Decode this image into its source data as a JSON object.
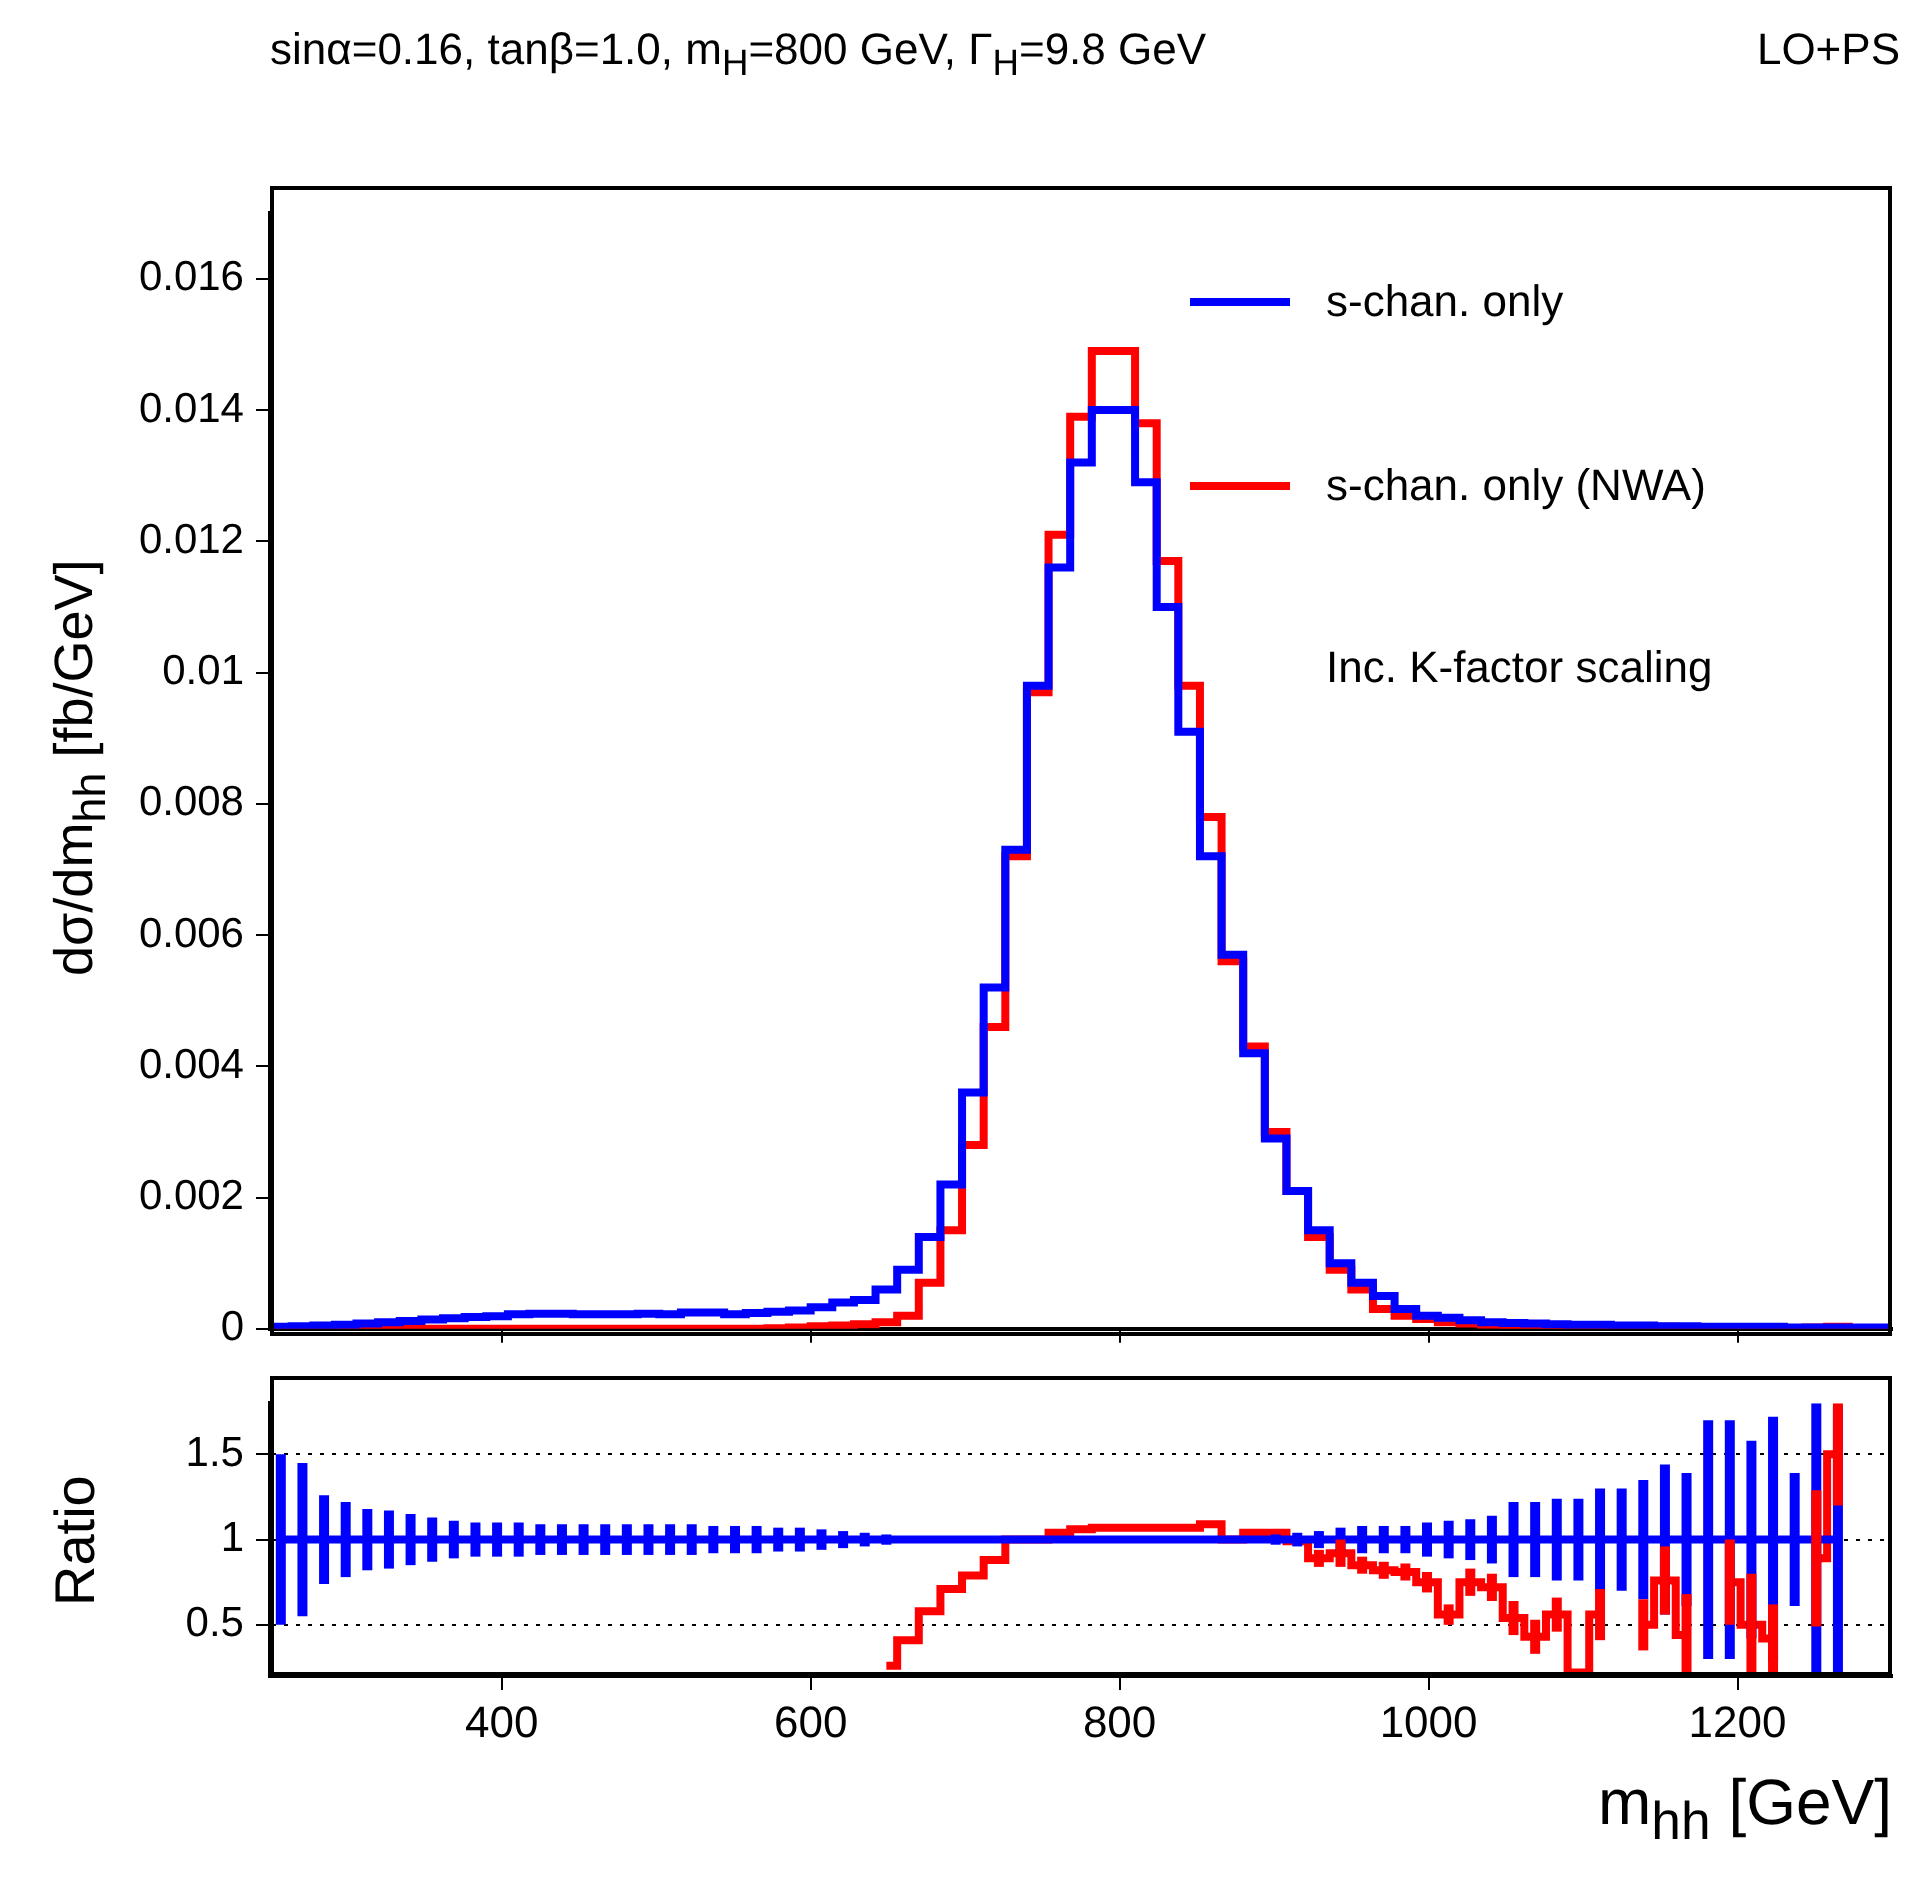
{
  "chart_data": [
    {
      "type": "histogram",
      "title": "sinα=0.16, tanβ=1.0, m$_{H}$=800 GeV, Γ$_{H}$=9.8 GeV",
      "ylabel": "dσ/dm$_{hh}$ [fb/GeV]",
      "annotations": [
        "LO+PS",
        "Inc. K-factor scaling"
      ],
      "legend": "top right",
      "tick_labels": "y",
      "bins": [
        250,
        264,
        278,
        292,
        306,
        320,
        334,
        348,
        362,
        376,
        390,
        404,
        418,
        432,
        446,
        460,
        474,
        488,
        502,
        516,
        530,
        544,
        558,
        572,
        586,
        600,
        614,
        628,
        642,
        656,
        670,
        684,
        698,
        712,
        726,
        740,
        754,
        768,
        782,
        796,
        810,
        824,
        838,
        852,
        866,
        880,
        894,
        908,
        922,
        936,
        950,
        964,
        978,
        992,
        1006,
        1020,
        1034,
        1048,
        1062,
        1076,
        1090,
        1104,
        1118,
        1132,
        1146,
        1160,
        1174,
        1188,
        1202,
        1216,
        1230,
        1244,
        1258,
        1272,
        1286,
        1300
      ],
      "xlim": [
        250,
        1300
      ],
      "xticks": [
        400,
        600,
        800,
        1000,
        1200
      ],
      "ylim": [
        0,
        0.017
      ],
      "yticks": [
        0,
        0.002,
        0.004,
        0.006,
        0.008,
        0.01,
        0.012,
        0.014,
        0.016
      ],
      "series": [
        {
          "name": "s-chan. only",
          "color": "#0000ff",
          "values": [
            3e-05,
            4e-05,
            5e-05,
            6e-05,
            8e-05,
            0.0001,
            0.00012,
            0.00014,
            0.00016,
            0.00018,
            0.00019,
            0.00022,
            0.00023,
            0.00023,
            0.00022,
            0.00022,
            0.00022,
            0.00023,
            0.00022,
            0.00025,
            0.00025,
            0.00022,
            0.00024,
            0.00026,
            0.00028,
            0.00033,
            0.0004,
            0.00044,
            0.0006,
            0.0009,
            0.0014,
            0.0022,
            0.0036,
            0.0052,
            0.0073,
            0.0098,
            0.0116,
            0.0132,
            0.014,
            0.014,
            0.0129,
            0.011,
            0.0091,
            0.0072,
            0.0057,
            0.0042,
            0.0029,
            0.0021,
            0.0015,
            0.001,
            0.0007,
            0.0005,
            0.0003,
            0.0002,
            0.00017,
            0.00013,
            0.0001,
            9e-05,
            8e-05,
            7e-05,
            6e-05,
            6e-05,
            5e-05,
            5e-05,
            4e-05,
            4e-05,
            3e-05,
            3e-05,
            3e-05,
            3e-05,
            2e-05,
            2e-05,
            2e-05,
            2e-05,
            2e-05
          ]
        },
        {
          "name": "s-chan. only (NWA)",
          "color": "#ff0000",
          "values": [
            0,
            0,
            0,
            0,
            0,
            0,
            0,
            0,
            0,
            0,
            0,
            0,
            0,
            0,
            0,
            0,
            0,
            0,
            0,
            0,
            0,
            0,
            0,
            1e-05,
            2e-05,
            4e-05,
            5e-05,
            7e-05,
            0.0001,
            0.0002,
            0.0007,
            0.0015,
            0.0028,
            0.0046,
            0.0072,
            0.0097,
            0.0121,
            0.0139,
            0.0149,
            0.0149,
            0.0138,
            0.0117,
            0.0098,
            0.0078,
            0.0056,
            0.0043,
            0.003,
            0.0021,
            0.0014,
            0.0009,
            0.0006,
            0.0003,
            0.0002,
            0.00015,
            0.0001,
            8e-05,
            6e-05,
            5e-05,
            3e-05,
            3e-05,
            2e-05,
            3e-05,
            1e-05,
            3e-05,
            3e-05,
            2e-05,
            1e-05,
            2e-05,
            2e-05,
            1e-05,
            1e-05,
            2e-05,
            3e-05,
            0,
            0
          ]
        }
      ]
    },
    {
      "type": "step",
      "ylabel": "Ratio",
      "xlabel": "m$_{hh}$ [GeV]",
      "grid": "y",
      "x": [
        257,
        271,
        285,
        299,
        313,
        327,
        341,
        355,
        369,
        383,
        397,
        411,
        425,
        439,
        453,
        467,
        481,
        495,
        509,
        523,
        537,
        551,
        565,
        579,
        593,
        607,
        621,
        635,
        649,
        663,
        677,
        691,
        705,
        719,
        733,
        747,
        761,
        775,
        789,
        803,
        817,
        831,
        845,
        859,
        873,
        887,
        901,
        915,
        929,
        943,
        957,
        971,
        985,
        999,
        1013,
        1027,
        1041,
        1055,
        1069,
        1083,
        1097,
        1111,
        1125,
        1139,
        1153,
        1167,
        1181,
        1195,
        1209,
        1223,
        1237,
        1251,
        1265
      ],
      "xlim": [
        250,
        1300
      ],
      "xticks": [
        400,
        600,
        800,
        1000,
        1200
      ],
      "ylim": [
        0.2,
        1.8
      ],
      "yticks": [
        0.5,
        1,
        1.5
      ],
      "series": [
        {
          "color": "#0000ff",
          "values": [
            1,
            1,
            1,
            1,
            1,
            1,
            1,
            1,
            1,
            1,
            1,
            1,
            1,
            1,
            1,
            1,
            1,
            1,
            1,
            1,
            1,
            1,
            1,
            1,
            1,
            1,
            1,
            1,
            1,
            1,
            1,
            1,
            1,
            1,
            1,
            1,
            1,
            1,
            1,
            1,
            1,
            1,
            1,
            1,
            1,
            1,
            1,
            1,
            1,
            1,
            1,
            1,
            1,
            1,
            1,
            1,
            1,
            1,
            1,
            1,
            1,
            1,
            1,
            1,
            1,
            1,
            1,
            1,
            1,
            1,
            1,
            1,
            1
          ],
          "errors": [
            0.5,
            0.45,
            0.26,
            0.22,
            0.18,
            0.17,
            0.15,
            0.13,
            0.11,
            0.1,
            0.1,
            0.1,
            0.09,
            0.09,
            0.09,
            0.09,
            0.09,
            0.09,
            0.09,
            0.09,
            0.08,
            0.08,
            0.08,
            0.07,
            0.07,
            0.06,
            0.05,
            0.04,
            0.03,
            0.02,
            null,
            null,
            null,
            null,
            null,
            null,
            null,
            null,
            null,
            null,
            null,
            null,
            null,
            null,
            null,
            0.02,
            0.03,
            0.04,
            0.05,
            0.07,
            0.08,
            0.08,
            0.08,
            0.1,
            0.11,
            0.12,
            0.14,
            0.22,
            0.22,
            0.24,
            0.24,
            0.3,
            0.3,
            0.35,
            0.44,
            0.39,
            0.7,
            0.7,
            0.58,
            0.72,
            0.39,
            0.8,
            0.78
          ]
        },
        {
          "color": "#ff0000",
          "values": [
            null,
            null,
            null,
            null,
            null,
            null,
            null,
            null,
            null,
            null,
            null,
            null,
            null,
            null,
            null,
            null,
            null,
            null,
            null,
            null,
            null,
            null,
            null,
            null,
            null,
            null,
            null,
            null,
            0.26,
            0.41,
            0.58,
            0.71,
            0.79,
            0.88,
            1,
            1,
            1.04,
            1.06,
            1.07,
            1.07,
            1.07,
            1.07,
            1.07,
            1.09,
            1,
            1.04,
            1.04,
            0.99,
            0.89,
            0.92,
            0.85,
            0.82,
            0.81,
            0.75,
            0.56,
            0.75,
            0.72,
            0.54,
            0.43,
            0.56,
            0.22,
            0.56,
            null,
            0.5,
            0.76,
            0.44,
            null,
            0.75,
            0.5,
            0.42,
            null,
            0.89,
            1.5
          ],
          "errors": [
            null,
            null,
            null,
            null,
            null,
            null,
            null,
            null,
            null,
            null,
            null,
            null,
            null,
            null,
            null,
            null,
            null,
            null,
            null,
            null,
            null,
            null,
            null,
            null,
            null,
            null,
            null,
            null,
            null,
            null,
            null,
            null,
            null,
            null,
            null,
            null,
            null,
            null,
            null,
            null,
            null,
            null,
            null,
            null,
            null,
            null,
            null,
            null,
            0.05,
            0.08,
            0.05,
            0.05,
            0.05,
            0.06,
            0.06,
            0.08,
            0.08,
            0.1,
            0.1,
            0.1,
            null,
            0.15,
            null,
            0.15,
            0.2,
            0.24,
            null,
            0.25,
            0.3,
            0.2,
            null,
            0.4,
            0.3
          ]
        }
      ]
    }
  ]
}
